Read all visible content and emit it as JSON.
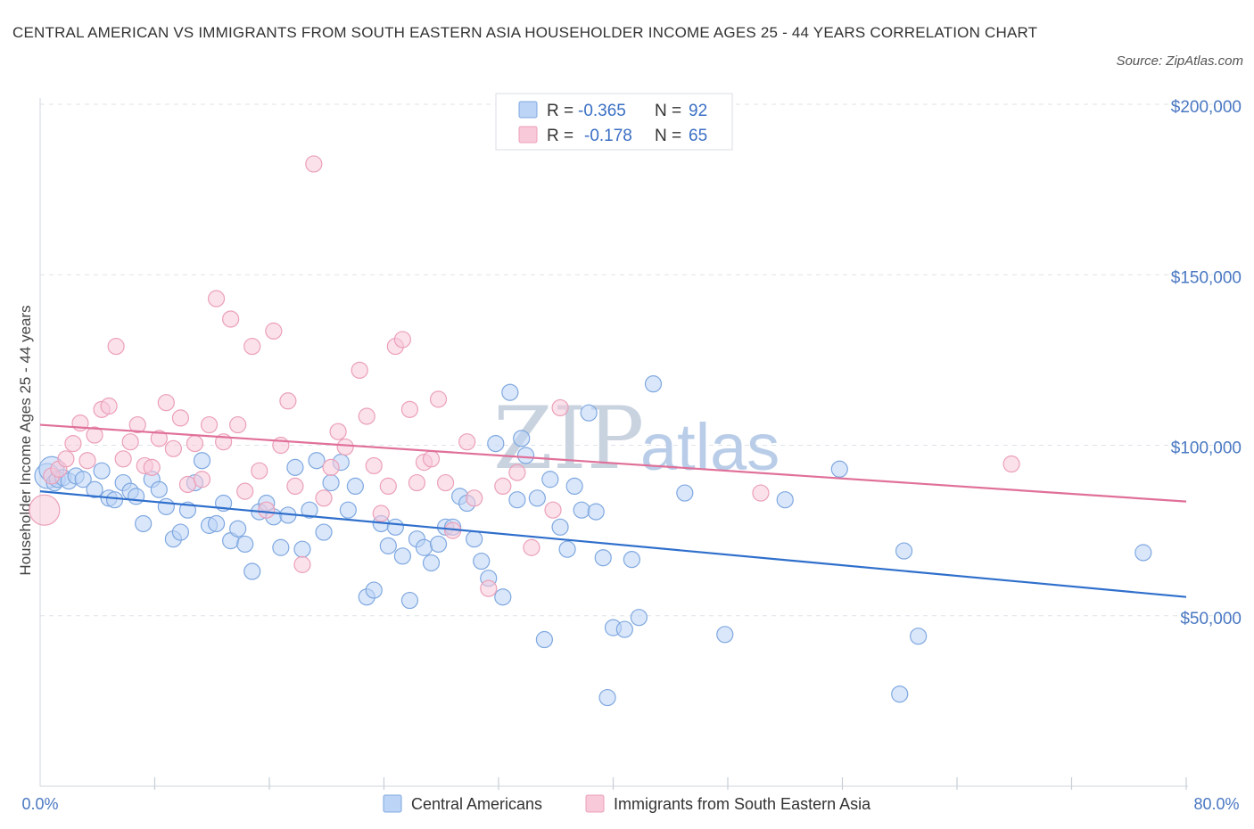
{
  "title": "CENTRAL AMERICAN VS IMMIGRANTS FROM SOUTH EASTERN ASIA HOUSEHOLDER INCOME AGES 25 - 44 YEARS CORRELATION CHART",
  "source": "Source: ZipAtlas.com",
  "watermark": {
    "zip": "ZIP",
    "atlas": "atlas"
  },
  "colors": {
    "blue_fill": "#bcd4f5",
    "blue_stroke": "#7fa8e0",
    "blue_line": "#2f6fcc",
    "pink_fill": "#f8c9d8",
    "pink_stroke": "#eba0b9",
    "pink_line": "#e07099",
    "grid": "#dde3ea",
    "tick_text": "#4a78c2"
  },
  "legend": {
    "rows": [
      {
        "r_label": "R = ",
        "r_value": "-0.365",
        "n_label": "N = ",
        "n_value": "92"
      },
      {
        "r_label": "R = ",
        "r_value": "-0.178",
        "n_label": "N = ",
        "n_value": "65"
      }
    ]
  },
  "chart_data": {
    "type": "scatter",
    "title": "CENTRAL AMERICAN VS IMMIGRANTS FROM SOUTH EASTERN ASIA HOUSEHOLDER INCOME AGES 25 - 44 YEARS CORRELATION CHART",
    "xlabel": "",
    "ylabel": "Householder Income Ages 25 - 44 years",
    "xlim": [
      0,
      80
    ],
    "ylim": [
      0,
      200000
    ],
    "x_tick_labels": [
      "0.0%",
      "80.0%"
    ],
    "y_ticks": [
      50000,
      100000,
      150000,
      200000
    ],
    "y_tick_labels": [
      "$50,000",
      "$100,000",
      "$150,000",
      "$200,000"
    ],
    "grid": true,
    "legend_position": "top-center",
    "series": [
      {
        "name": "Central Americans",
        "color": "#bcd4f5",
        "stats": {
          "R": -0.365,
          "N": 92
        },
        "trend": {
          "x": [
            0,
            80
          ],
          "y": [
            86500,
            55500
          ]
        },
        "points": [
          [
            0.5,
            91000
          ],
          [
            0.8,
            93000
          ],
          [
            1.0,
            89000
          ],
          [
            1.2,
            90000
          ],
          [
            1.6,
            90500
          ],
          [
            2.0,
            89500
          ],
          [
            2.5,
            91000
          ],
          [
            3.0,
            90000
          ],
          [
            3.8,
            87000
          ],
          [
            4.3,
            92500
          ],
          [
            4.8,
            84500
          ],
          [
            5.2,
            84000
          ],
          [
            5.8,
            89000
          ],
          [
            6.3,
            86500
          ],
          [
            6.7,
            85000
          ],
          [
            7.2,
            77000
          ],
          [
            7.8,
            90000
          ],
          [
            8.3,
            87000
          ],
          [
            8.8,
            82000
          ],
          [
            9.3,
            72500
          ],
          [
            9.8,
            74500
          ],
          [
            10.3,
            81000
          ],
          [
            10.8,
            89000
          ],
          [
            11.3,
            95500
          ],
          [
            11.8,
            76500
          ],
          [
            12.3,
            77000
          ],
          [
            12.8,
            83000
          ],
          [
            13.3,
            72000
          ],
          [
            13.8,
            75500
          ],
          [
            14.3,
            71000
          ],
          [
            14.8,
            63000
          ],
          [
            15.3,
            80500
          ],
          [
            15.8,
            83000
          ],
          [
            16.3,
            79000
          ],
          [
            16.8,
            70000
          ],
          [
            17.3,
            79500
          ],
          [
            17.8,
            93500
          ],
          [
            18.3,
            69500
          ],
          [
            18.8,
            81000
          ],
          [
            19.3,
            95500
          ],
          [
            19.8,
            74500
          ],
          [
            20.3,
            89000
          ],
          [
            21.0,
            95000
          ],
          [
            21.5,
            81000
          ],
          [
            22.0,
            88000
          ],
          [
            22.8,
            55500
          ],
          [
            23.3,
            57500
          ],
          [
            23.8,
            77000
          ],
          [
            24.3,
            70500
          ],
          [
            24.8,
            76000
          ],
          [
            25.3,
            67500
          ],
          [
            25.8,
            54500
          ],
          [
            26.3,
            72500
          ],
          [
            26.8,
            70000
          ],
          [
            27.3,
            65500
          ],
          [
            27.8,
            71000
          ],
          [
            28.3,
            76000
          ],
          [
            28.8,
            76000
          ],
          [
            29.3,
            85000
          ],
          [
            29.8,
            83000
          ],
          [
            30.3,
            72500
          ],
          [
            30.8,
            66000
          ],
          [
            31.3,
            61000
          ],
          [
            31.8,
            100500
          ],
          [
            32.3,
            55500
          ],
          [
            32.8,
            115500
          ],
          [
            33.3,
            84000
          ],
          [
            33.6,
            102000
          ],
          [
            33.9,
            97000
          ],
          [
            34.7,
            84500
          ],
          [
            35.2,
            43000
          ],
          [
            35.6,
            90000
          ],
          [
            36.3,
            76000
          ],
          [
            36.8,
            69500
          ],
          [
            37.3,
            88000
          ],
          [
            37.8,
            81000
          ],
          [
            38.3,
            109500
          ],
          [
            38.8,
            80500
          ],
          [
            39.3,
            67000
          ],
          [
            39.6,
            26000
          ],
          [
            40.0,
            46500
          ],
          [
            40.8,
            46000
          ],
          [
            41.3,
            66500
          ],
          [
            41.8,
            49500
          ],
          [
            42.8,
            118000
          ],
          [
            45.0,
            86000
          ],
          [
            47.8,
            44500
          ],
          [
            52.0,
            84000
          ],
          [
            55.8,
            93000
          ],
          [
            60.0,
            27000
          ],
          [
            60.3,
            69000
          ],
          [
            61.3,
            44000
          ],
          [
            77.0,
            68500
          ]
        ]
      },
      {
        "name": "Immigrants from South Eastern Asia",
        "color": "#f8c9d8",
        "stats": {
          "R": -0.178,
          "N": 65
        },
        "trend": {
          "x": [
            0,
            80
          ],
          "y": [
            106000,
            83500
          ]
        },
        "points": [
          [
            0.3,
            81000
          ],
          [
            0.8,
            91000
          ],
          [
            1.3,
            93000
          ],
          [
            1.8,
            96000
          ],
          [
            2.3,
            100500
          ],
          [
            2.8,
            106500
          ],
          [
            3.3,
            95500
          ],
          [
            3.8,
            103000
          ],
          [
            4.3,
            110500
          ],
          [
            4.8,
            111500
          ],
          [
            5.3,
            129000
          ],
          [
            5.8,
            96000
          ],
          [
            6.3,
            101000
          ],
          [
            6.8,
            106000
          ],
          [
            7.3,
            94000
          ],
          [
            7.8,
            93500
          ],
          [
            8.3,
            102000
          ],
          [
            8.8,
            112500
          ],
          [
            9.3,
            99000
          ],
          [
            9.8,
            108000
          ],
          [
            10.3,
            88500
          ],
          [
            10.8,
            100500
          ],
          [
            11.3,
            90000
          ],
          [
            11.8,
            106000
          ],
          [
            12.3,
            143000
          ],
          [
            12.8,
            101000
          ],
          [
            13.3,
            137000
          ],
          [
            13.8,
            106000
          ],
          [
            14.3,
            86500
          ],
          [
            14.8,
            129000
          ],
          [
            15.3,
            92500
          ],
          [
            15.8,
            81000
          ],
          [
            16.3,
            133500
          ],
          [
            16.8,
            100000
          ],
          [
            17.3,
            113000
          ],
          [
            17.8,
            88000
          ],
          [
            18.3,
            65000
          ],
          [
            19.1,
            182500
          ],
          [
            19.8,
            84500
          ],
          [
            20.3,
            93500
          ],
          [
            20.8,
            104000
          ],
          [
            21.3,
            99500
          ],
          [
            22.3,
            122000
          ],
          [
            22.8,
            108500
          ],
          [
            23.3,
            94000
          ],
          [
            23.8,
            80000
          ],
          [
            24.3,
            88000
          ],
          [
            24.8,
            129000
          ],
          [
            25.3,
            131000
          ],
          [
            25.8,
            110500
          ],
          [
            26.3,
            89000
          ],
          [
            26.8,
            95000
          ],
          [
            27.3,
            96000
          ],
          [
            27.8,
            113500
          ],
          [
            28.3,
            89000
          ],
          [
            28.8,
            75000
          ],
          [
            29.8,
            101000
          ],
          [
            30.3,
            84500
          ],
          [
            31.3,
            58000
          ],
          [
            32.3,
            88000
          ],
          [
            33.3,
            92000
          ],
          [
            34.3,
            70000
          ],
          [
            35.8,
            81000
          ],
          [
            36.3,
            111000
          ],
          [
            50.3,
            86000
          ],
          [
            67.8,
            94500
          ]
        ]
      }
    ]
  },
  "bottom_legend": {
    "blue_label": "Central Americans",
    "pink_label": "Immigrants from South Eastern Asia"
  }
}
